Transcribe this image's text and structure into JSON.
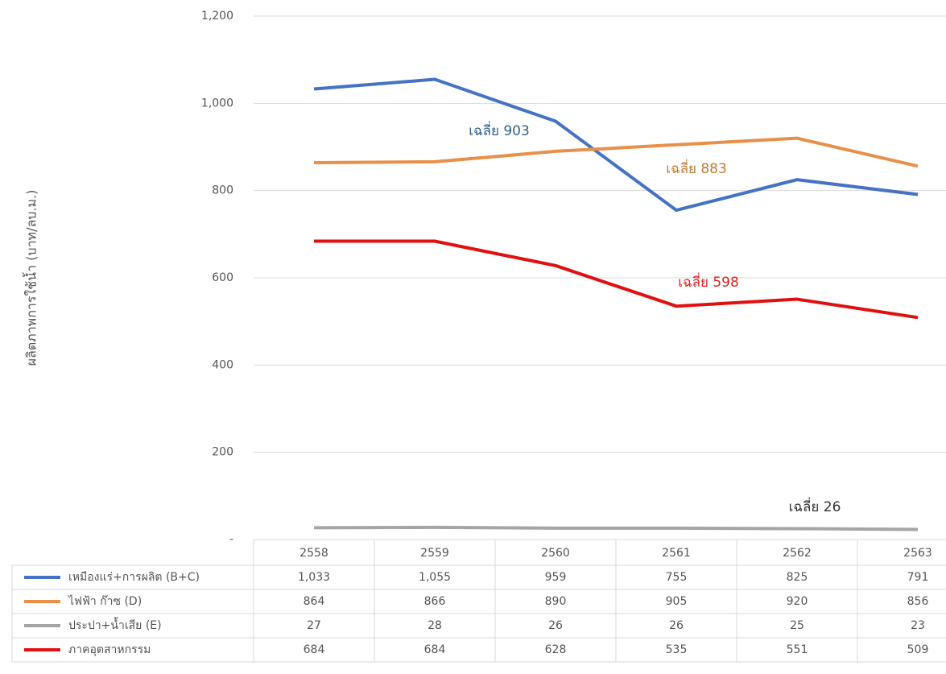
{
  "chart_data": {
    "type": "line",
    "y_label": "ผลิตภาพการใช้น้ำ (บาท/ลบ.ม.)",
    "categories": [
      "2558",
      "2559",
      "2560",
      "2561",
      "2562",
      "2563"
    ],
    "ylim": [
      0,
      1200
    ],
    "yticks": [
      {
        "value": 0,
        "label": "-"
      },
      200,
      400,
      600,
      800,
      {
        "value": 1000,
        "label": "1,000"
      },
      {
        "value": 1200,
        "label": "1,200"
      }
    ],
    "grid": true,
    "series": [
      {
        "name": "เหมืองแร่+การผลิต (B+C)",
        "color": "#4472c4",
        "values": [
          1033,
          1055,
          959,
          755,
          825,
          791
        ],
        "value_labels": [
          "1,033",
          "1,055",
          "959",
          "755",
          "825",
          "791"
        ],
        "average_label": "เฉลี่ย 903"
      },
      {
        "name": "ไฟฟ้า ก๊าซ (D)",
        "color": "#e8904a",
        "values": [
          864,
          866,
          890,
          905,
          920,
          856
        ],
        "average_label": "เฉลี่ย 883"
      },
      {
        "name": "ประปา+น้ำเสีย (E)",
        "color": "#a5a5a5",
        "values": [
          27,
          28,
          26,
          26,
          25,
          23
        ],
        "average_label": "เฉลี่ย 26"
      },
      {
        "name": "ภาคอุตสาหกรรม",
        "color": "#e01010",
        "values": [
          684,
          684,
          628,
          535,
          551,
          509
        ],
        "average_label": "เฉลี่ย 598"
      }
    ]
  }
}
